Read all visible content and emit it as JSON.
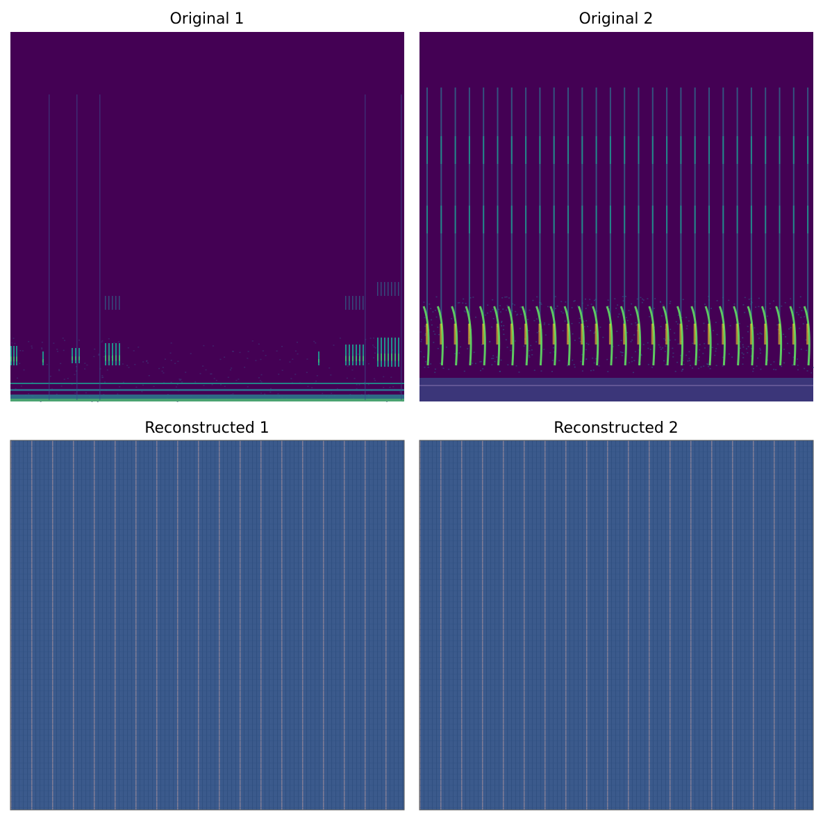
{
  "chart_data": [
    {
      "type": "heatmap",
      "title": "Original 1",
      "colormap": "viridis",
      "axes_visible": false,
      "description_free": true
    },
    {
      "type": "heatmap",
      "title": "Original 2",
      "colormap": "viridis",
      "axes_visible": false
    },
    {
      "type": "heatmap",
      "title": "Reconstructed 1",
      "colormap": "viridis",
      "axes_visible": false
    },
    {
      "type": "heatmap",
      "title": "Reconstructed 2",
      "colormap": "viridis",
      "axes_visible": false
    }
  ],
  "colors": {
    "background": "#440154",
    "reconstructed_base": "#3b5a8c",
    "stripe_light": "#9a8a9a",
    "stripe_dark": "#2b4a7a",
    "teal": "#21918c",
    "green": "#5ec962",
    "yellow": "#fde725"
  }
}
